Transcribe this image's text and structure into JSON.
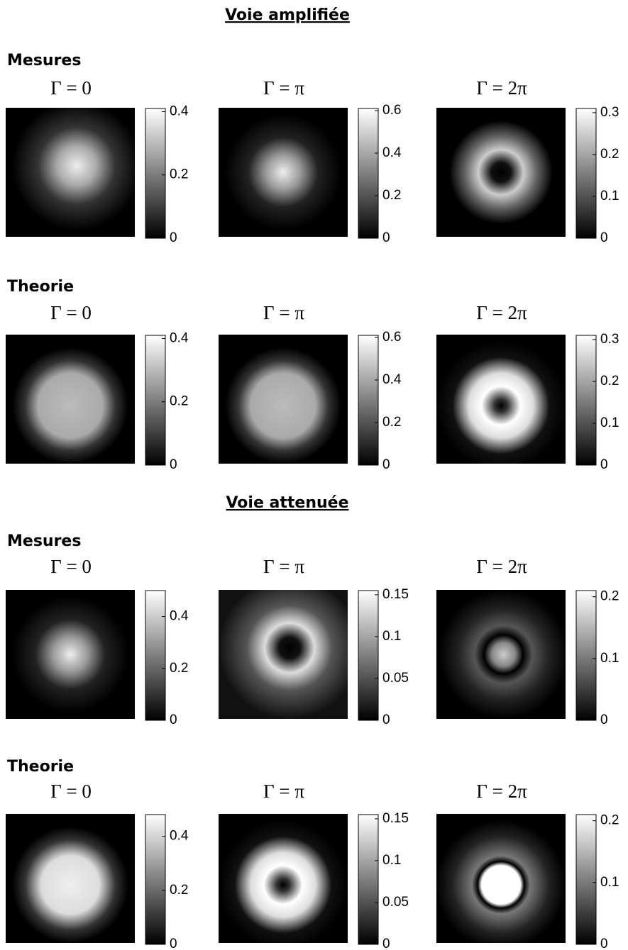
{
  "sections": [
    {
      "title": "Voie amplifiée",
      "groups": [
        {
          "label": "Mesures",
          "panels": [
            {
              "title": "Γ = 0",
              "colorbar": {
                "lim": [
                  0,
                  0.41
                ],
                "ticks": [
                  0,
                  0.2,
                  0.4
                ]
              }
            },
            {
              "title": "Γ = π",
              "colorbar": {
                "lim": [
                  0,
                  0.61
                ],
                "ticks": [
                  0,
                  0.2,
                  0.4,
                  0.6
                ]
              }
            },
            {
              "title": "Γ = 2π",
              "colorbar": {
                "lim": [
                  0,
                  0.31
                ],
                "ticks": [
                  0,
                  0.1,
                  0.2,
                  0.3
                ]
              }
            }
          ]
        },
        {
          "label": "Theorie",
          "panels": [
            {
              "title": "Γ = 0",
              "colorbar": {
                "lim": [
                  0,
                  0.41
                ],
                "ticks": [
                  0,
                  0.2,
                  0.4
                ]
              }
            },
            {
              "title": "Γ = π",
              "colorbar": {
                "lim": [
                  0,
                  0.61
                ],
                "ticks": [
                  0,
                  0.2,
                  0.4,
                  0.6
                ]
              }
            },
            {
              "title": "Γ = 2π",
              "colorbar": {
                "lim": [
                  0,
                  0.31
                ],
                "ticks": [
                  0,
                  0.1,
                  0.2,
                  0.3
                ]
              }
            }
          ]
        }
      ]
    },
    {
      "title": "Voie attenuée",
      "groups": [
        {
          "label": "Mesures",
          "panels": [
            {
              "title": "Γ = 0",
              "colorbar": {
                "lim": [
                  0,
                  0.5
                ],
                "ticks": [
                  0,
                  0.2,
                  0.4
                ]
              }
            },
            {
              "title": "Γ = π",
              "colorbar": {
                "lim": [
                  0,
                  0.155
                ],
                "ticks": [
                  0,
                  0.05,
                  0.1,
                  0.15
                ]
              }
            },
            {
              "title": "Γ = 2π",
              "colorbar": {
                "lim": [
                  0,
                  0.21
                ],
                "ticks": [
                  0,
                  0.1,
                  0.2
                ]
              }
            }
          ]
        },
        {
          "label": "Theorie",
          "panels": [
            {
              "title": "Γ = 0",
              "colorbar": {
                "lim": [
                  0,
                  0.48
                ],
                "ticks": [
                  0,
                  0.2,
                  0.4
                ]
              }
            },
            {
              "title": "Γ = π",
              "colorbar": {
                "lim": [
                  0,
                  0.155
                ],
                "ticks": [
                  0,
                  0.05,
                  0.1,
                  0.15
                ]
              }
            },
            {
              "title": "Γ = 2π",
              "colorbar": {
                "lim": [
                  0,
                  0.21
                ],
                "ticks": [
                  0,
                  0.1,
                  0.2
                ]
              }
            }
          ]
        }
      ]
    }
  ]
}
